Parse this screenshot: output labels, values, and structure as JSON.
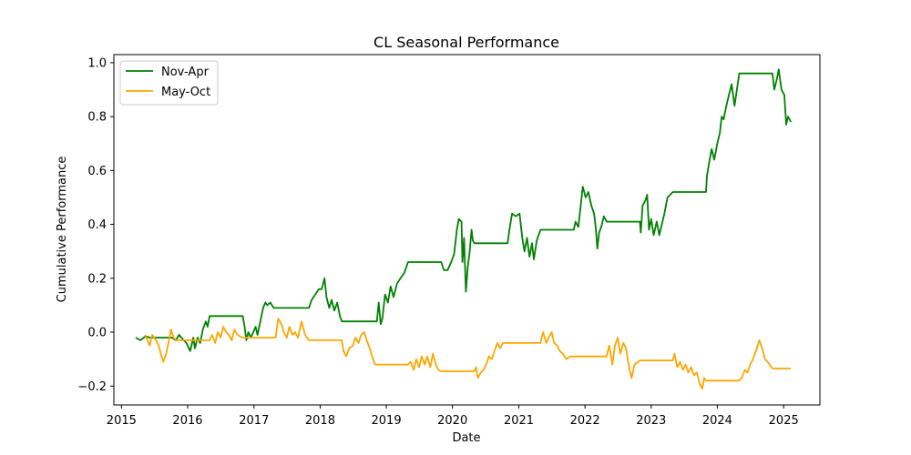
{
  "chart_data": {
    "type": "line",
    "title": "CL Seasonal Performance",
    "xlabel": "Date",
    "ylabel": "Cumulative Performance",
    "xlim": [
      "2014-11-20",
      "2025-07-20"
    ],
    "ylim": [
      -0.27,
      1.03
    ],
    "xticks": [
      "2015",
      "2016",
      "2017",
      "2018",
      "2019",
      "2020",
      "2021",
      "2022",
      "2023",
      "2024",
      "2025"
    ],
    "yticks": [
      -0.2,
      0.0,
      0.2,
      0.4,
      0.6,
      0.8,
      1.0
    ],
    "grid": false,
    "legend_position": "top-left",
    "series": [
      {
        "name": "Nov-Apr",
        "color": "#008000",
        "points": [
          [
            "2015-03-20",
            -0.02
          ],
          [
            "2015-04-15",
            -0.03
          ],
          [
            "2015-05-15",
            -0.015
          ],
          [
            "2015-06-05",
            -0.02
          ],
          [
            "2015-07-01",
            -0.02
          ],
          [
            "2015-09-01",
            -0.02
          ],
          [
            "2015-10-05",
            -0.02
          ],
          [
            "2015-10-28",
            -0.03
          ],
          [
            "2015-11-15",
            -0.01
          ],
          [
            "2015-12-10",
            -0.03
          ],
          [
            "2015-12-25",
            -0.04
          ],
          [
            "2016-01-15",
            -0.07
          ],
          [
            "2016-02-01",
            -0.02
          ],
          [
            "2016-02-10",
            -0.06
          ],
          [
            "2016-02-25",
            -0.02
          ],
          [
            "2016-03-10",
            -0.04
          ],
          [
            "2016-03-25",
            0.01
          ],
          [
            "2016-04-10",
            0.04
          ],
          [
            "2016-04-20",
            0.02
          ],
          [
            "2016-05-01",
            0.06
          ],
          [
            "2016-10-31",
            0.06
          ],
          [
            "2016-11-10",
            0.02
          ],
          [
            "2016-11-20",
            -0.03
          ],
          [
            "2016-12-01",
            0.0
          ],
          [
            "2016-12-15",
            -0.02
          ],
          [
            "2017-01-10",
            0.02
          ],
          [
            "2017-01-20",
            -0.01
          ],
          [
            "2017-02-05",
            0.04
          ],
          [
            "2017-02-20",
            0.09
          ],
          [
            "2017-03-05",
            0.11
          ],
          [
            "2017-03-15",
            0.1
          ],
          [
            "2017-04-01",
            0.11
          ],
          [
            "2017-04-20",
            0.09
          ],
          [
            "2017-05-01",
            0.09
          ],
          [
            "2017-10-31",
            0.09
          ],
          [
            "2017-11-15",
            0.12
          ],
          [
            "2017-12-05",
            0.14
          ],
          [
            "2017-12-25",
            0.16
          ],
          [
            "2018-01-10",
            0.16
          ],
          [
            "2018-01-25",
            0.2
          ],
          [
            "2018-02-05",
            0.13
          ],
          [
            "2018-02-20",
            0.09
          ],
          [
            "2018-03-05",
            0.12
          ],
          [
            "2018-03-20",
            0.08
          ],
          [
            "2018-04-05",
            0.11
          ],
          [
            "2018-04-20",
            0.06
          ],
          [
            "2018-05-01",
            0.04
          ],
          [
            "2018-10-31",
            0.04
          ],
          [
            "2018-11-10",
            0.04
          ],
          [
            "2018-11-20",
            0.11
          ],
          [
            "2018-12-01",
            0.03
          ],
          [
            "2018-12-10",
            0.05
          ],
          [
            "2018-12-25",
            0.14
          ],
          [
            "2019-01-10",
            0.11
          ],
          [
            "2019-01-25",
            0.17
          ],
          [
            "2019-02-10",
            0.13
          ],
          [
            "2019-03-01",
            0.18
          ],
          [
            "2019-03-20",
            0.2
          ],
          [
            "2019-04-10",
            0.22
          ],
          [
            "2019-05-01",
            0.26
          ],
          [
            "2019-10-31",
            0.26
          ],
          [
            "2019-11-15",
            0.23
          ],
          [
            "2019-12-05",
            0.23
          ],
          [
            "2019-12-25",
            0.26
          ],
          [
            "2020-01-10",
            0.29
          ],
          [
            "2020-01-25",
            0.38
          ],
          [
            "2020-02-05",
            0.42
          ],
          [
            "2020-02-20",
            0.41
          ],
          [
            "2020-02-25",
            0.26
          ],
          [
            "2020-03-05",
            0.35
          ],
          [
            "2020-03-15",
            0.15
          ],
          [
            "2020-03-25",
            0.24
          ],
          [
            "2020-04-05",
            0.3
          ],
          [
            "2020-04-15",
            0.38
          ],
          [
            "2020-04-22",
            0.34
          ],
          [
            "2020-05-01",
            0.33
          ],
          [
            "2020-10-31",
            0.33
          ],
          [
            "2020-11-10",
            0.38
          ],
          [
            "2020-11-25",
            0.44
          ],
          [
            "2020-12-15",
            0.43
          ],
          [
            "2021-01-05",
            0.44
          ],
          [
            "2021-01-20",
            0.35
          ],
          [
            "2021-02-01",
            0.3
          ],
          [
            "2021-02-15",
            0.35
          ],
          [
            "2021-03-01",
            0.28
          ],
          [
            "2021-03-15",
            0.33
          ],
          [
            "2021-03-25",
            0.27
          ],
          [
            "2021-04-10",
            0.34
          ],
          [
            "2021-04-20",
            0.36
          ],
          [
            "2021-05-01",
            0.38
          ],
          [
            "2021-10-31",
            0.38
          ],
          [
            "2021-11-10",
            0.41
          ],
          [
            "2021-11-25",
            0.39
          ],
          [
            "2021-12-10",
            0.48
          ],
          [
            "2021-12-20",
            0.54
          ],
          [
            "2022-01-05",
            0.5
          ],
          [
            "2022-01-20",
            0.52
          ],
          [
            "2022-02-05",
            0.47
          ],
          [
            "2022-02-20",
            0.44
          ],
          [
            "2022-03-01",
            0.39
          ],
          [
            "2022-03-10",
            0.31
          ],
          [
            "2022-03-20",
            0.37
          ],
          [
            "2022-04-01",
            0.39
          ],
          [
            "2022-04-15",
            0.43
          ],
          [
            "2022-05-01",
            0.41
          ],
          [
            "2022-10-31",
            0.41
          ],
          [
            "2022-11-05",
            0.37
          ],
          [
            "2022-11-15",
            0.47
          ],
          [
            "2022-12-01",
            0.49
          ],
          [
            "2022-12-10",
            0.51
          ],
          [
            "2022-12-20",
            0.38
          ],
          [
            "2023-01-01",
            0.42
          ],
          [
            "2023-01-15",
            0.36
          ],
          [
            "2023-02-01",
            0.41
          ],
          [
            "2023-02-15",
            0.36
          ],
          [
            "2023-03-01",
            0.4
          ],
          [
            "2023-03-15",
            0.44
          ],
          [
            "2023-04-01",
            0.5
          ],
          [
            "2023-05-01",
            0.52
          ],
          [
            "2023-10-31",
            0.52
          ],
          [
            "2023-11-05",
            0.58
          ],
          [
            "2023-11-20",
            0.64
          ],
          [
            "2023-12-01",
            0.68
          ],
          [
            "2023-12-15",
            0.64
          ],
          [
            "2024-01-01",
            0.7
          ],
          [
            "2024-01-15",
            0.74
          ],
          [
            "2024-01-25",
            0.8
          ],
          [
            "2024-02-05",
            0.79
          ],
          [
            "2024-02-20",
            0.84
          ],
          [
            "2024-03-05",
            0.88
          ],
          [
            "2024-03-20",
            0.92
          ],
          [
            "2024-04-05",
            0.84
          ],
          [
            "2024-05-01",
            0.96
          ],
          [
            "2024-10-31",
            0.96
          ],
          [
            "2024-11-10",
            0.9
          ],
          [
            "2024-11-25",
            0.94
          ],
          [
            "2024-12-05",
            0.975
          ],
          [
            "2024-12-20",
            0.9
          ],
          [
            "2025-01-05",
            0.88
          ],
          [
            "2025-01-15",
            0.77
          ],
          [
            "2025-01-25",
            0.8
          ],
          [
            "2025-02-10",
            0.78
          ]
        ]
      },
      {
        "name": "May-Oct",
        "color": "#ffa500",
        "points": [
          [
            "2015-05-10",
            -0.01
          ],
          [
            "2015-05-25",
            -0.03
          ],
          [
            "2015-06-05",
            -0.05
          ],
          [
            "2015-06-20",
            -0.01
          ],
          [
            "2015-07-10",
            -0.03
          ],
          [
            "2015-07-25",
            -0.05
          ],
          [
            "2015-08-10",
            -0.09
          ],
          [
            "2015-08-20",
            -0.11
          ],
          [
            "2015-09-05",
            -0.08
          ],
          [
            "2015-09-20",
            -0.03
          ],
          [
            "2015-10-01",
            0.01
          ],
          [
            "2015-10-15",
            -0.02
          ],
          [
            "2015-10-31",
            -0.03
          ],
          [
            "2016-04-30",
            -0.03
          ],
          [
            "2016-05-15",
            -0.01
          ],
          [
            "2016-06-01",
            -0.04
          ],
          [
            "2016-06-15",
            0.0
          ],
          [
            "2016-07-01",
            -0.02
          ],
          [
            "2016-07-15",
            0.02
          ],
          [
            "2016-08-01",
            0.0
          ],
          [
            "2016-08-15",
            -0.01
          ],
          [
            "2016-09-01",
            -0.03
          ],
          [
            "2016-09-15",
            0.01
          ],
          [
            "2016-10-01",
            -0.01
          ],
          [
            "2016-10-31",
            -0.02
          ],
          [
            "2017-04-30",
            -0.02
          ],
          [
            "2017-05-15",
            0.05
          ],
          [
            "2017-06-01",
            0.03
          ],
          [
            "2017-06-15",
            0.0
          ],
          [
            "2017-07-01",
            -0.02
          ],
          [
            "2017-07-15",
            0.02
          ],
          [
            "2017-08-01",
            -0.01
          ],
          [
            "2017-08-15",
            0.0
          ],
          [
            "2017-09-01",
            -0.02
          ],
          [
            "2017-09-20",
            0.04
          ],
          [
            "2017-10-10",
            -0.01
          ],
          [
            "2017-10-31",
            -0.03
          ],
          [
            "2018-04-30",
            -0.03
          ],
          [
            "2018-05-10",
            -0.07
          ],
          [
            "2018-05-25",
            -0.09
          ],
          [
            "2018-06-10",
            -0.06
          ],
          [
            "2018-07-01",
            -0.05
          ],
          [
            "2018-07-15",
            -0.02
          ],
          [
            "2018-08-01",
            -0.04
          ],
          [
            "2018-08-15",
            -0.01
          ],
          [
            "2018-09-01",
            0.0
          ],
          [
            "2018-09-15",
            -0.03
          ],
          [
            "2018-10-01",
            -0.06
          ],
          [
            "2018-10-15",
            -0.09
          ],
          [
            "2018-10-31",
            -0.12
          ],
          [
            "2019-04-30",
            -0.12
          ],
          [
            "2019-05-15",
            -0.11
          ],
          [
            "2019-06-01",
            -0.14
          ],
          [
            "2019-06-15",
            -0.1
          ],
          [
            "2019-07-01",
            -0.13
          ],
          [
            "2019-07-15",
            -0.09
          ],
          [
            "2019-08-01",
            -0.12
          ],
          [
            "2019-08-15",
            -0.09
          ],
          [
            "2019-09-01",
            -0.13
          ],
          [
            "2019-09-15",
            -0.08
          ],
          [
            "2019-10-01",
            -0.12
          ],
          [
            "2019-10-15",
            -0.14
          ],
          [
            "2019-10-31",
            -0.145
          ],
          [
            "2020-04-30",
            -0.145
          ],
          [
            "2020-05-10",
            -0.13
          ],
          [
            "2020-05-20",
            -0.17
          ],
          [
            "2020-06-05",
            -0.15
          ],
          [
            "2020-06-20",
            -0.14
          ],
          [
            "2020-07-05",
            -0.12
          ],
          [
            "2020-07-20",
            -0.09
          ],
          [
            "2020-08-05",
            -0.1
          ],
          [
            "2020-08-20",
            -0.07
          ],
          [
            "2020-09-05",
            -0.04
          ],
          [
            "2020-09-20",
            -0.06
          ],
          [
            "2020-10-05",
            -0.04
          ],
          [
            "2020-10-31",
            -0.04
          ],
          [
            "2021-04-30",
            -0.04
          ],
          [
            "2021-05-15",
            0.0
          ],
          [
            "2021-06-01",
            -0.04
          ],
          [
            "2021-06-15",
            -0.02
          ],
          [
            "2021-07-01",
            0.0
          ],
          [
            "2021-07-15",
            -0.04
          ],
          [
            "2021-08-01",
            -0.05
          ],
          [
            "2021-08-15",
            -0.07
          ],
          [
            "2021-09-01",
            -0.08
          ],
          [
            "2021-09-20",
            -0.1
          ],
          [
            "2021-10-10",
            -0.09
          ],
          [
            "2021-10-31",
            -0.09
          ],
          [
            "2022-04-30",
            -0.09
          ],
          [
            "2022-05-15",
            -0.05
          ],
          [
            "2022-06-01",
            -0.12
          ],
          [
            "2022-06-15",
            -0.05
          ],
          [
            "2022-07-01",
            -0.02
          ],
          [
            "2022-07-15",
            -0.08
          ],
          [
            "2022-08-01",
            -0.04
          ],
          [
            "2022-08-15",
            -0.06
          ],
          [
            "2022-09-01",
            -0.13
          ],
          [
            "2022-09-15",
            -0.17
          ],
          [
            "2022-10-01",
            -0.12
          ],
          [
            "2022-10-31",
            -0.105
          ],
          [
            "2023-04-30",
            -0.105
          ],
          [
            "2023-05-10",
            -0.08
          ],
          [
            "2023-05-25",
            -0.13
          ],
          [
            "2023-06-10",
            -0.11
          ],
          [
            "2023-06-25",
            -0.14
          ],
          [
            "2023-07-10",
            -0.12
          ],
          [
            "2023-07-25",
            -0.15
          ],
          [
            "2023-08-10",
            -0.13
          ],
          [
            "2023-08-25",
            -0.16
          ],
          [
            "2023-09-10",
            -0.15
          ],
          [
            "2023-09-25",
            -0.19
          ],
          [
            "2023-10-10",
            -0.21
          ],
          [
            "2023-10-20",
            -0.17
          ],
          [
            "2023-10-31",
            -0.18
          ],
          [
            "2024-04-30",
            -0.18
          ],
          [
            "2024-05-15",
            -0.17
          ],
          [
            "2024-06-01",
            -0.14
          ],
          [
            "2024-06-15",
            -0.15
          ],
          [
            "2024-07-01",
            -0.12
          ],
          [
            "2024-07-15",
            -0.1
          ],
          [
            "2024-08-01",
            -0.07
          ],
          [
            "2024-08-20",
            -0.03
          ],
          [
            "2024-09-05",
            -0.06
          ],
          [
            "2024-09-20",
            -0.1
          ],
          [
            "2024-10-05",
            -0.11
          ],
          [
            "2024-10-31",
            -0.135
          ],
          [
            "2025-02-10",
            -0.135
          ]
        ]
      }
    ]
  }
}
